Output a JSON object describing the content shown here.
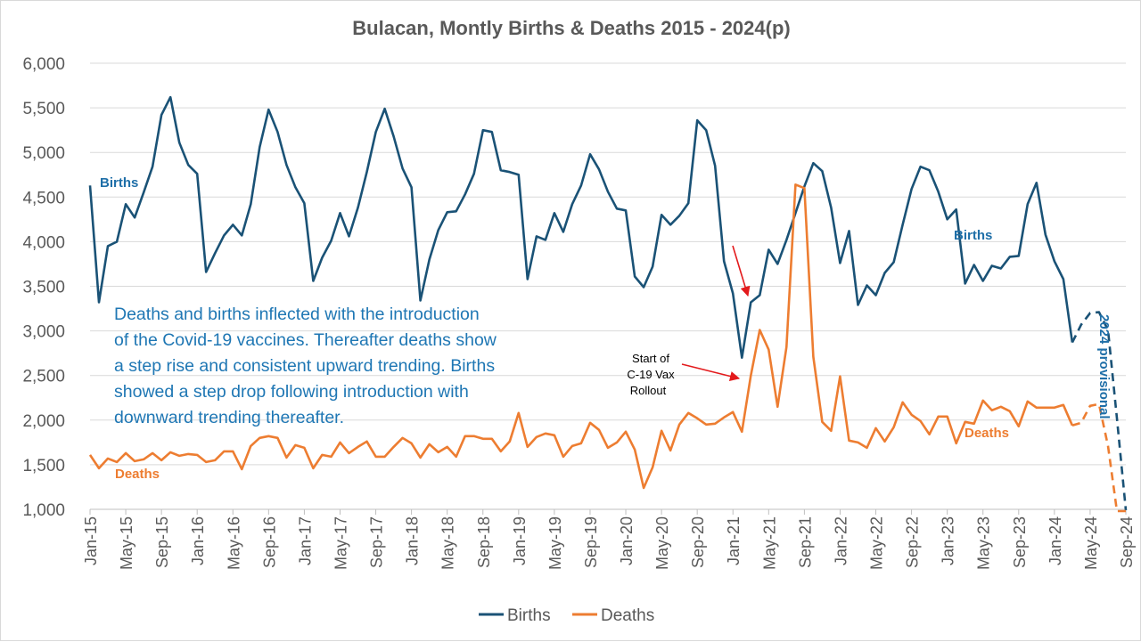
{
  "chart_data": {
    "type": "line",
    "title": "Bulacan, Montly Births & Deaths 2015 - 2024(p)",
    "xlabel": "",
    "ylabel": "",
    "ylim": [
      1000,
      6000
    ],
    "yticks": [
      "1,000",
      "1,500",
      "2,000",
      "2,500",
      "3,000",
      "3,500",
      "4,000",
      "4,500",
      "5,000",
      "5,500",
      "6,000"
    ],
    "xtick_labels": [
      "Jan-15",
      "May-15",
      "Sep-15",
      "Jan-16",
      "May-16",
      "Sep-16",
      "Jan-17",
      "May-17",
      "Sep-17",
      "Jan-18",
      "May-18",
      "Sep-18",
      "Jan-19",
      "May-19",
      "Sep-19",
      "Jan-20",
      "May-20",
      "Sep-20",
      "Jan-21",
      "May-21",
      "Sep-21",
      "Jan-22",
      "May-22",
      "Sep-22",
      "Jan-23",
      "May-23",
      "Sep-23",
      "Jan-24",
      "May-24",
      "Sep-24"
    ],
    "x_start": "Jan-15",
    "x_end": "Sep-24",
    "grid": "horizontal",
    "legend": "bottom",
    "provisional_from_index": 110,
    "series": [
      {
        "name": "Births",
        "color": "#1a5276",
        "values": [
          4630,
          3320,
          3950,
          4000,
          4420,
          4270,
          4550,
          4840,
          5420,
          5620,
          5110,
          4860,
          4760,
          3660,
          3870,
          4070,
          4190,
          4070,
          4420,
          5060,
          5480,
          5230,
          4860,
          4610,
          4430,
          3560,
          3820,
          4010,
          4320,
          4060,
          4380,
          4780,
          5230,
          5490,
          5180,
          4820,
          4610,
          3340,
          3800,
          4130,
          4330,
          4340,
          4530,
          4760,
          5250,
          5230,
          4800,
          4780,
          4750,
          3580,
          4060,
          4020,
          4320,
          4110,
          4420,
          4630,
          4980,
          4810,
          4560,
          4370,
          4350,
          3610,
          3490,
          3720,
          4300,
          4190,
          4290,
          4430,
          5360,
          5250,
          4850,
          3780,
          3420,
          2700,
          3320,
          3400,
          3910,
          3750,
          4020,
          4320,
          4620,
          4880,
          4790,
          4380,
          3760,
          4120,
          3290,
          3510,
          3400,
          3650,
          3770,
          4190,
          4590,
          4840,
          4800,
          4560,
          4250,
          4360,
          3530,
          3740,
          3560,
          3730,
          3700,
          3830,
          3840,
          4420,
          4660,
          4080,
          3780,
          3580,
          2870,
          3070,
          3200,
          3210,
          3010,
          2020,
          990
        ],
        "label_left": "Births",
        "label_right": "Births"
      },
      {
        "name": "Deaths",
        "color": "#ed7d31",
        "values": [
          1610,
          1460,
          1570,
          1530,
          1630,
          1540,
          1560,
          1630,
          1550,
          1640,
          1600,
          1620,
          1610,
          1530,
          1550,
          1650,
          1650,
          1450,
          1710,
          1800,
          1820,
          1800,
          1580,
          1720,
          1690,
          1460,
          1610,
          1590,
          1750,
          1630,
          1700,
          1760,
          1590,
          1590,
          1700,
          1800,
          1740,
          1580,
          1730,
          1640,
          1700,
          1590,
          1820,
          1820,
          1790,
          1790,
          1650,
          1760,
          2080,
          1700,
          1810,
          1850,
          1830,
          1590,
          1710,
          1740,
          1970,
          1890,
          1690,
          1750,
          1870,
          1670,
          1240,
          1470,
          1880,
          1660,
          1950,
          2080,
          2020,
          1950,
          1960,
          2030,
          2090,
          1870,
          2500,
          3010,
          2790,
          2150,
          2820,
          4640,
          4600,
          2710,
          1980,
          1880,
          2490,
          1770,
          1750,
          1690,
          1910,
          1760,
          1920,
          2200,
          2060,
          1990,
          1840,
          2040,
          2040,
          1740,
          1980,
          1960,
          2220,
          2110,
          2150,
          2100,
          1930,
          2210,
          2140,
          2140,
          2140,
          2170,
          1940,
          1970,
          2160,
          2180,
          1710,
          980,
          980
        ],
        "label_left": "Deaths",
        "label_right": "Deaths"
      }
    ],
    "annotations": {
      "note_lines": [
        "Deaths and births inflected with the introduction",
        "of the Covid-19 vaccines. Thereafter deaths show",
        "a step rise and consistent upward trending.  Births",
        "showed a step drop following introduction with",
        "downward trending thereafter."
      ],
      "vax_lines": [
        "Start of",
        "C-19 Vax",
        "Rollout"
      ],
      "provisional_label": "2024 provisional",
      "arrow_color": "#e31a1c",
      "note_color": "#1f77b4"
    }
  }
}
